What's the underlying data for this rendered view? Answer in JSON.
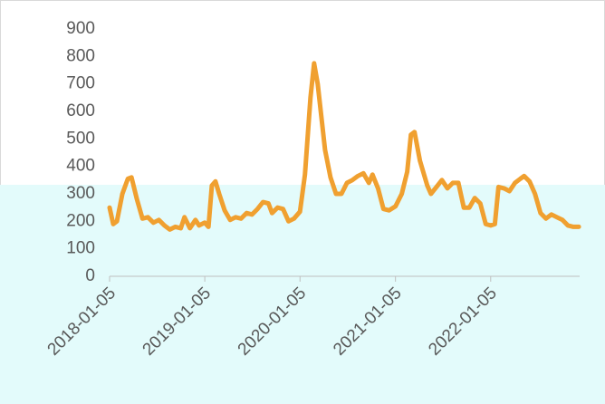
{
  "chart_data": {
    "type": "line",
    "x": [
      "2018-01-05",
      "2018-01-19",
      "2018-02-02",
      "2018-02-23",
      "2018-03-16",
      "2018-03-30",
      "2018-04-20",
      "2018-05-11",
      "2018-06-01",
      "2018-06-22",
      "2018-07-13",
      "2018-08-03",
      "2018-08-24",
      "2018-09-14",
      "2018-10-05",
      "2018-10-19",
      "2018-11-09",
      "2018-11-30",
      "2018-12-14",
      "2019-01-05",
      "2019-01-19",
      "2019-02-01",
      "2019-02-15",
      "2019-03-01",
      "2019-03-22",
      "2019-04-12",
      "2019-05-03",
      "2019-05-24",
      "2019-06-14",
      "2019-07-05",
      "2019-07-26",
      "2019-08-16",
      "2019-09-06",
      "2019-09-20",
      "2019-10-11",
      "2019-11-01",
      "2019-11-22",
      "2019-12-13",
      "2020-01-05",
      "2020-01-24",
      "2020-02-14",
      "2020-02-28",
      "2020-03-13",
      "2020-04-10",
      "2020-05-01",
      "2020-05-22",
      "2020-06-12",
      "2020-07-03",
      "2020-07-24",
      "2020-08-14",
      "2020-09-04",
      "2020-09-25",
      "2020-10-09",
      "2020-10-30",
      "2020-11-20",
      "2020-12-11",
      "2021-01-05",
      "2021-01-29",
      "2021-02-19",
      "2021-03-05",
      "2021-03-19",
      "2021-04-09",
      "2021-05-07",
      "2021-05-21",
      "2021-06-11",
      "2021-07-02",
      "2021-07-23",
      "2021-08-13",
      "2021-09-03",
      "2021-09-24",
      "2021-10-15",
      "2021-11-05",
      "2021-11-26",
      "2021-12-17",
      "2022-01-05",
      "2022-01-21",
      "2022-02-04",
      "2022-02-25",
      "2022-03-18",
      "2022-04-08",
      "2022-04-29",
      "2022-05-13",
      "2022-06-03",
      "2022-06-24",
      "2022-07-15",
      "2022-08-05",
      "2022-08-26",
      "2022-09-16",
      "2022-10-07",
      "2022-10-28",
      "2022-11-18",
      "2022-12-09"
    ],
    "series": [
      {
        "color": "#f0a030",
        "values": [
          250,
          190,
          200,
          300,
          355,
          360,
          280,
          210,
          215,
          195,
          205,
          185,
          170,
          180,
          175,
          215,
          175,
          205,
          185,
          195,
          180,
          330,
          345,
          300,
          240,
          205,
          215,
          210,
          230,
          225,
          245,
          270,
          265,
          230,
          250,
          245,
          200,
          210,
          235,
          370,
          650,
          775,
          700,
          460,
          360,
          300,
          300,
          340,
          350,
          365,
          375,
          340,
          370,
          320,
          245,
          240,
          255,
          300,
          380,
          515,
          525,
          420,
          330,
          300,
          325,
          350,
          320,
          340,
          340,
          250,
          250,
          285,
          265,
          190,
          185,
          190,
          325,
          320,
          310,
          340,
          355,
          365,
          345,
          300,
          230,
          210,
          225,
          215,
          205,
          185,
          180,
          180
        ]
      }
    ],
    "xlim": [
      "2018-01-05",
      "2022-12-12"
    ],
    "xticks": [
      "2018-01-05",
      "2019-01-05",
      "2020-01-05",
      "2021-01-05",
      "2022-01-05"
    ],
    "ylim": [
      0,
      900
    ],
    "yticks": [
      0,
      100,
      200,
      300,
      400,
      500,
      600,
      700,
      800,
      900
    ]
  }
}
